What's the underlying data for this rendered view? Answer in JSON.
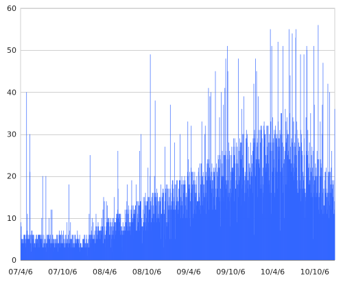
{
  "chart_data": {
    "type": "bar",
    "title": "",
    "xlabel": "",
    "ylabel": "",
    "x_range": [
      "2007-04-06",
      "2010-12-31"
    ],
    "ylim": [
      0,
      60
    ],
    "y_ticks": [
      0,
      10,
      20,
      30,
      40,
      50,
      60
    ],
    "x_ticks": [
      {
        "date": "2007-04-06",
        "label": "07/4/6"
      },
      {
        "date": "2007-10-06",
        "label": "07/10/6"
      },
      {
        "date": "2008-04-06",
        "label": "08/4/6"
      },
      {
        "date": "2008-10-06",
        "label": "08/10/6"
      },
      {
        "date": "2009-04-06",
        "label": "09/4/6"
      },
      {
        "date": "2009-10-06",
        "label": "09/10/6"
      },
      {
        "date": "2010-04-06",
        "label": "10/4/6"
      },
      {
        "date": "2010-10-06",
        "label": "10/10/6"
      }
    ],
    "grid": true,
    "legend": "none",
    "bar_color": "#3366ff",
    "series": [
      {
        "points": [
          {
            "date": "2007-04-06",
            "value": 9
          },
          {
            "date": "2007-05-01",
            "value": 40
          },
          {
            "date": "2007-05-15",
            "value": 30
          },
          {
            "date": "2007-05-16",
            "value": 21
          },
          {
            "date": "2007-07-10",
            "value": 20
          },
          {
            "date": "2007-07-24",
            "value": 20
          },
          {
            "date": "2007-11-01",
            "value": 18
          },
          {
            "date": "2008-02-01",
            "value": 25
          },
          {
            "date": "2008-06-01",
            "value": 26
          },
          {
            "date": "2008-09-10",
            "value": 30
          },
          {
            "date": "2008-10-20",
            "value": 49
          },
          {
            "date": "2008-11-10",
            "value": 38
          },
          {
            "date": "2009-01-15",
            "value": 37
          },
          {
            "date": "2009-04-01",
            "value": 33
          },
          {
            "date": "2009-06-01",
            "value": 33
          },
          {
            "date": "2009-09-20",
            "value": 51
          },
          {
            "date": "2009-12-01",
            "value": 39
          },
          {
            "date": "2010-01-20",
            "value": 48
          },
          {
            "date": "2010-04-01",
            "value": 51
          },
          {
            "date": "2010-05-20",
            "value": 51
          },
          {
            "date": "2010-09-01",
            "value": 50
          },
          {
            "date": "2010-10-01",
            "value": 51
          },
          {
            "date": "2010-10-20",
            "value": 56
          },
          {
            "date": "2010-11-10",
            "value": 47
          },
          {
            "date": "2010-12-01",
            "value": 42
          },
          {
            "date": "2010-12-31",
            "value": 36
          }
        ]
      }
    ]
  }
}
